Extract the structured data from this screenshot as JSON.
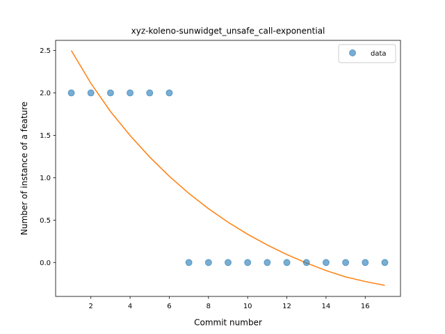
{
  "chart_data": {
    "type": "scatter",
    "title": "xyz-koleno-sunwidget_unsafe_call-exponential",
    "xlabel": "Commit number",
    "ylabel": "Number of instance of a feature",
    "xlim": [
      0.2,
      17.8
    ],
    "ylim": [
      -0.4,
      2.62
    ],
    "xticks": [
      2,
      4,
      6,
      8,
      10,
      12,
      14,
      16
    ],
    "yticks": [
      0.0,
      0.5,
      1.0,
      1.5,
      2.0,
      2.5
    ],
    "xtick_labels": [
      "2",
      "4",
      "6",
      "8",
      "10",
      "12",
      "14",
      "16"
    ],
    "ytick_labels": [
      "0.0",
      "0.5",
      "1.0",
      "1.5",
      "2.0",
      "2.5"
    ],
    "grid": false,
    "legend_position": "top-right",
    "series": [
      {
        "name": "data",
        "kind": "markers",
        "color": "#1f77b4",
        "x": [
          1,
          2,
          3,
          4,
          5,
          6,
          7,
          8,
          9,
          10,
          11,
          12,
          13,
          14,
          15,
          16,
          17
        ],
        "y": [
          2,
          2,
          2,
          2,
          2,
          2,
          0,
          0,
          0,
          0,
          0,
          0,
          0,
          0,
          0,
          0,
          0
        ]
      },
      {
        "kind": "line",
        "color": "#ff7f0e",
        "x": [
          1,
          2,
          3,
          4,
          5,
          6,
          7,
          8,
          9,
          10,
          11,
          12,
          13,
          14,
          15,
          16,
          17
        ],
        "y": [
          2.5,
          2.113,
          1.781,
          1.498,
          1.244,
          1.017,
          0.815,
          0.635,
          0.475,
          0.333,
          0.207,
          0.094,
          -0.006,
          -0.095,
          -0.17,
          -0.224,
          -0.27
        ]
      }
    ]
  }
}
